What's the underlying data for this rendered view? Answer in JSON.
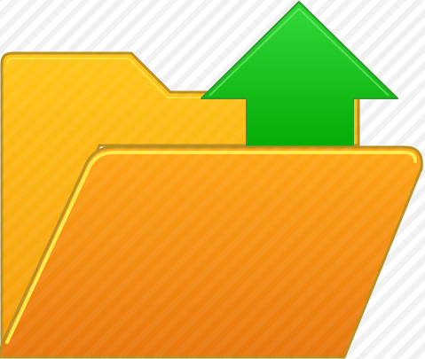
{
  "icon": {
    "name": "folder-upload-icon",
    "parts": [
      "folder-back",
      "upload-arrow",
      "folder-front"
    ]
  },
  "colors": {
    "background_stripe_light": "#ffffff",
    "background_stripe_dark": "#f1f1f1",
    "folder_back_light": "#ffc61a",
    "folder_back_dark": "#f59b0c",
    "folder_edge": "#b98d1f",
    "folder_front_light": "#ffa617",
    "folder_front_dark": "#e8770e",
    "folder_highlight": "#ffe94a",
    "arrow_light": "#33d83a",
    "arrow_dark": "#00a800",
    "arrow_edge": "#2a9a2a"
  }
}
